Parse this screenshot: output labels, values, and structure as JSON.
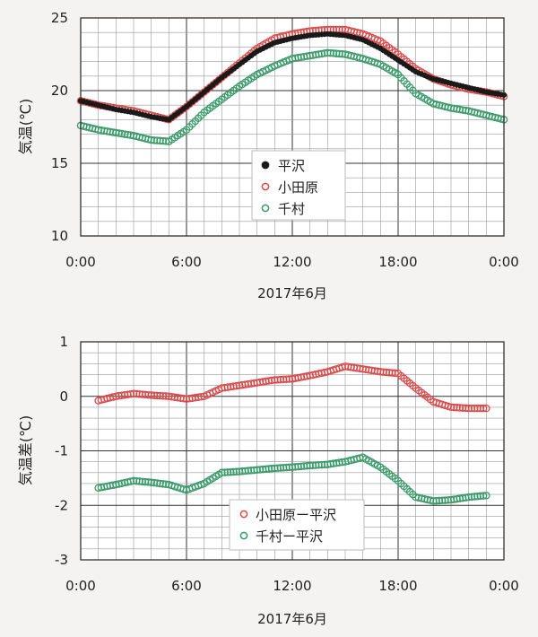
{
  "chart_data": [
    {
      "type": "scatter",
      "ylabel": "気温(℃)",
      "xlabel": "2017年6月",
      "x_ticks": [
        "0:00",
        "6:00",
        "12:00",
        "18:00",
        "0:00"
      ],
      "y_ticks": [
        "10",
        "15",
        "20",
        "25"
      ],
      "xlim": [
        0,
        24
      ],
      "ylim": [
        10,
        25
      ],
      "grid": true,
      "legend_position": "center",
      "series": [
        {
          "name": "平沢",
          "color": "#1a1a1a",
          "filled": true,
          "x": [
            0,
            1,
            2,
            3,
            4,
            5,
            6,
            7,
            8,
            9,
            10,
            11,
            12,
            13,
            14,
            15,
            16,
            17,
            18,
            19,
            20,
            21,
            22,
            23,
            24
          ],
          "y": [
            19.3,
            19.0,
            18.7,
            18.5,
            18.2,
            18.0,
            18.9,
            19.9,
            20.9,
            21.8,
            22.7,
            23.3,
            23.6,
            23.8,
            23.9,
            23.8,
            23.5,
            22.9,
            22.1,
            21.3,
            20.8,
            20.5,
            20.2,
            19.9,
            19.7
          ]
        },
        {
          "name": "小田原",
          "color": "#d94b4b",
          "filled": false,
          "x": [
            0,
            1,
            2,
            3,
            4,
            5,
            6,
            7,
            8,
            9,
            10,
            11,
            12,
            13,
            14,
            15,
            16,
            17,
            18,
            19,
            20,
            21,
            22,
            23,
            24
          ],
          "y": [
            19.3,
            19.0,
            18.8,
            18.6,
            18.3,
            18.0,
            18.9,
            19.9,
            20.9,
            21.9,
            22.9,
            23.6,
            23.9,
            24.1,
            24.2,
            24.2,
            23.9,
            23.4,
            22.5,
            21.5,
            20.8,
            20.4,
            20.1,
            19.9,
            19.6
          ]
        },
        {
          "name": "千村",
          "color": "#3a9a6a",
          "filled": false,
          "x": [
            0,
            1,
            2,
            3,
            4,
            5,
            6,
            7,
            8,
            9,
            10,
            11,
            12,
            13,
            14,
            15,
            16,
            17,
            18,
            19,
            20,
            21,
            22,
            23,
            24
          ],
          "y": [
            17.6,
            17.3,
            17.1,
            16.9,
            16.6,
            16.5,
            17.3,
            18.5,
            19.4,
            20.3,
            21.1,
            21.7,
            22.2,
            22.4,
            22.6,
            22.5,
            22.2,
            21.8,
            21.1,
            19.8,
            19.1,
            18.8,
            18.6,
            18.3,
            18.0
          ]
        }
      ]
    },
    {
      "type": "scatter",
      "ylabel": "気温差(℃)",
      "xlabel": "2017年6月",
      "x_ticks": [
        "0:00",
        "6:00",
        "12:00",
        "18:00",
        "0:00"
      ],
      "y_ticks": [
        "1",
        "0",
        "-1",
        "-2",
        "-3"
      ],
      "xlim": [
        0,
        24
      ],
      "ylim": [
        -3,
        1
      ],
      "grid": true,
      "legend_position": "bottom-center",
      "series": [
        {
          "name": "小田原ー平沢",
          "color": "#d94b4b",
          "filled": false,
          "x": [
            1,
            2,
            3,
            4,
            5,
            6,
            7,
            8,
            9,
            10,
            11,
            12,
            13,
            14,
            15,
            16,
            17,
            18,
            19,
            20,
            21,
            22,
            23
          ],
          "y": [
            -0.08,
            0.0,
            0.05,
            0.02,
            0.0,
            -0.05,
            0.0,
            0.15,
            0.2,
            0.25,
            0.3,
            0.32,
            0.38,
            0.45,
            0.55,
            0.5,
            0.45,
            0.42,
            0.15,
            -0.1,
            -0.2,
            -0.22,
            -0.22
          ]
        },
        {
          "name": "千村ー平沢",
          "color": "#3a9a6a",
          "filled": false,
          "x": [
            1,
            2,
            3,
            4,
            5,
            6,
            7,
            8,
            9,
            10,
            11,
            12,
            13,
            14,
            15,
            16,
            17,
            18,
            19,
            20,
            21,
            22,
            23
          ],
          "y": [
            -1.68,
            -1.62,
            -1.55,
            -1.58,
            -1.62,
            -1.72,
            -1.6,
            -1.4,
            -1.38,
            -1.35,
            -1.32,
            -1.3,
            -1.27,
            -1.25,
            -1.2,
            -1.12,
            -1.3,
            -1.55,
            -1.85,
            -1.92,
            -1.9,
            -1.85,
            -1.82
          ]
        }
      ]
    }
  ]
}
